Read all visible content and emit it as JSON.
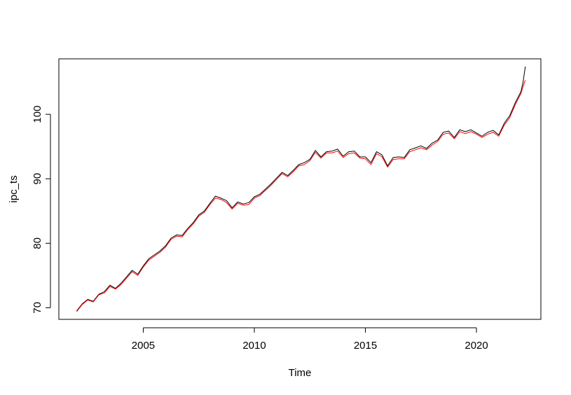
{
  "chart_data": {
    "type": "line",
    "title": "",
    "xlabel": "Time",
    "ylabel": "ipc_ts",
    "xlim": [
      2001.2,
      2022.9
    ],
    "ylim": [
      68.2,
      108.6
    ],
    "x_ticks": [
      2005,
      2010,
      2015,
      2020
    ],
    "x_tick_labels": [
      "2005",
      "2010",
      "2015",
      "2020"
    ],
    "y_ticks": [
      70,
      80,
      90,
      100
    ],
    "y_tick_labels": [
      "70",
      "80",
      "90",
      "100"
    ],
    "grid": false,
    "legend": "none",
    "series": [
      {
        "color": "#000000",
        "x": [
          2002.0,
          2002.25,
          2002.5,
          2002.75,
          2003.0,
          2003.25,
          2003.5,
          2003.75,
          2004.0,
          2004.25,
          2004.5,
          2004.75,
          2005.0,
          2005.25,
          2005.5,
          2005.75,
          2006.0,
          2006.25,
          2006.5,
          2006.75,
          2007.0,
          2007.25,
          2007.5,
          2007.75,
          2008.0,
          2008.25,
          2008.5,
          2008.75,
          2009.0,
          2009.25,
          2009.5,
          2009.75,
          2010.0,
          2010.25,
          2010.5,
          2010.75,
          2011.0,
          2011.25,
          2011.5,
          2011.75,
          2012.0,
          2012.25,
          2012.5,
          2012.75,
          2013.0,
          2013.25,
          2013.5,
          2013.75,
          2014.0,
          2014.25,
          2014.5,
          2014.75,
          2015.0,
          2015.25,
          2015.5,
          2015.75,
          2016.0,
          2016.25,
          2016.5,
          2016.75,
          2017.0,
          2017.25,
          2017.5,
          2017.75,
          2018.0,
          2018.25,
          2018.5,
          2018.75,
          2019.0,
          2019.25,
          2019.5,
          2019.75,
          2020.0,
          2020.25,
          2020.5,
          2020.75,
          2021.0,
          2021.25,
          2021.5,
          2021.75,
          2022.0,
          2022.1,
          2022.2
        ],
        "y": [
          69.5,
          70.6,
          71.3,
          71.0,
          72.1,
          72.5,
          73.5,
          73.0,
          73.8,
          74.8,
          75.8,
          75.2,
          76.5,
          77.6,
          78.2,
          78.8,
          79.6,
          80.8,
          81.3,
          81.2,
          82.3,
          83.2,
          84.4,
          85.0,
          86.2,
          87.3,
          87.0,
          86.6,
          85.5,
          86.4,
          86.1,
          86.3,
          87.2,
          87.6,
          88.4,
          89.2,
          90.1,
          91.0,
          90.5,
          91.3,
          92.2,
          92.5,
          93.0,
          94.4,
          93.4,
          94.2,
          94.3,
          94.6,
          93.5,
          94.2,
          94.3,
          93.4,
          93.4,
          92.5,
          94.2,
          93.7,
          92.0,
          93.3,
          93.4,
          93.3,
          94.5,
          94.8,
          95.1,
          94.7,
          95.5,
          96.0,
          97.2,
          97.4,
          96.4,
          97.6,
          97.3,
          97.6,
          97.1,
          96.6,
          97.2,
          97.5,
          96.8,
          98.6,
          99.8,
          101.8,
          103.5,
          105.0,
          107.4
        ]
      },
      {
        "color": "#ff0000",
        "x": [
          2002.0,
          2002.25,
          2002.5,
          2002.75,
          2003.0,
          2003.25,
          2003.5,
          2003.75,
          2004.0,
          2004.25,
          2004.5,
          2004.75,
          2005.0,
          2005.25,
          2005.5,
          2005.75,
          2006.0,
          2006.25,
          2006.5,
          2006.75,
          2007.0,
          2007.25,
          2007.5,
          2007.75,
          2008.0,
          2008.25,
          2008.5,
          2008.75,
          2009.0,
          2009.25,
          2009.5,
          2009.75,
          2010.0,
          2010.25,
          2010.5,
          2010.75,
          2011.0,
          2011.25,
          2011.5,
          2011.75,
          2012.0,
          2012.25,
          2012.5,
          2012.75,
          2013.0,
          2013.25,
          2013.5,
          2013.75,
          2014.0,
          2014.25,
          2014.5,
          2014.75,
          2015.0,
          2015.25,
          2015.5,
          2015.75,
          2016.0,
          2016.25,
          2016.5,
          2016.75,
          2017.0,
          2017.25,
          2017.5,
          2017.75,
          2018.0,
          2018.25,
          2018.5,
          2018.75,
          2019.0,
          2019.25,
          2019.5,
          2019.75,
          2020.0,
          2020.25,
          2020.5,
          2020.75,
          2021.0,
          2021.25,
          2021.5,
          2021.75,
          2022.0,
          2022.1,
          2022.2
        ],
        "y": [
          69.4,
          70.5,
          71.2,
          70.9,
          72.0,
          72.3,
          73.3,
          72.9,
          73.6,
          74.6,
          75.6,
          75.0,
          76.3,
          77.4,
          78.0,
          78.6,
          79.4,
          80.6,
          81.1,
          81.0,
          82.1,
          83.0,
          84.2,
          84.8,
          86.0,
          87.0,
          86.8,
          86.3,
          85.3,
          86.2,
          85.9,
          86.0,
          87.0,
          87.4,
          88.2,
          89.0,
          89.9,
          90.8,
          90.3,
          91.1,
          92.0,
          92.2,
          92.8,
          94.1,
          93.2,
          94.0,
          94.0,
          94.3,
          93.3,
          93.9,
          94.0,
          93.2,
          93.1,
          92.2,
          93.9,
          93.4,
          91.8,
          93.0,
          93.1,
          93.1,
          94.2,
          94.5,
          94.8,
          94.5,
          95.2,
          95.8,
          96.9,
          97.1,
          96.2,
          97.3,
          97.0,
          97.3,
          96.9,
          96.4,
          96.9,
          97.2,
          96.6,
          98.3,
          99.5,
          101.5,
          103.2,
          104.3,
          105.3
        ]
      }
    ]
  }
}
